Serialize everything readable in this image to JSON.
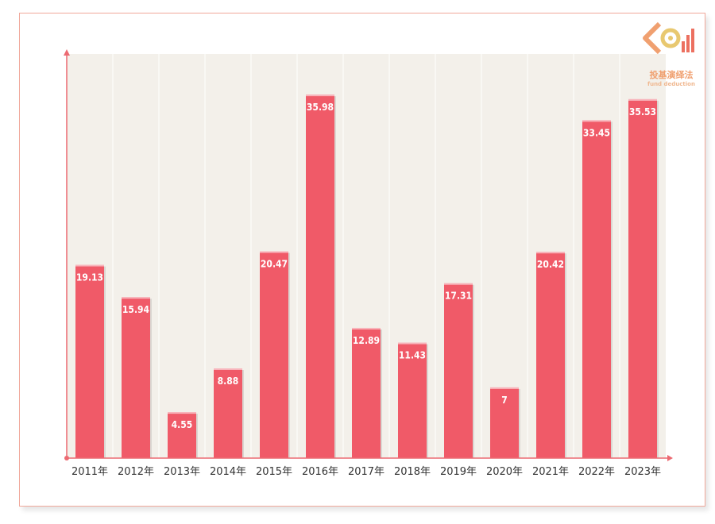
{
  "chart_data": {
    "type": "bar",
    "title": "",
    "xlabel": "",
    "ylabel": "",
    "categories": [
      "2011年",
      "2012年",
      "2013年",
      "2014年",
      "2015年",
      "2016年",
      "2017年",
      "2018年",
      "2019年",
      "2020年",
      "2021年",
      "2022年",
      "2023年"
    ],
    "values": [
      19.13,
      15.94,
      4.55,
      8.88,
      20.47,
      35.98,
      12.89,
      11.43,
      17.31,
      7,
      20.42,
      33.45,
      35.53
    ],
    "value_labels": [
      "19.13",
      "15.94",
      "4.55",
      "8.88",
      "20.47",
      "35.98",
      "12.89",
      "11.43",
      "17.31",
      "7",
      "20.42",
      "33.45",
      "35.53"
    ],
    "ylim": [
      0,
      40
    ],
    "grid": "vertical",
    "bar_color": "#f05a68",
    "plot_background": "#f3f0ea",
    "axis_color": "#ec6a72"
  },
  "logo": {
    "title": "投基演绎法",
    "subtitle": "fund deduction",
    "colors": [
      "#f0a070",
      "#e8c870",
      "#ec7060"
    ]
  }
}
